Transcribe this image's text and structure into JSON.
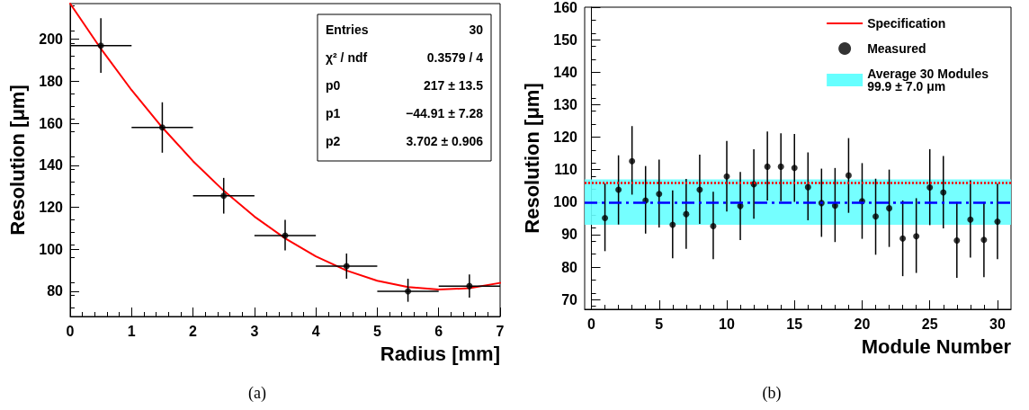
{
  "chart_data": [
    {
      "type": "scatter",
      "xlabel": "Radius [mm]",
      "ylabel": "Resolution [μm]",
      "xlim": [
        0,
        7
      ],
      "xticks": [
        0,
        1,
        2,
        3,
        4,
        5,
        6,
        7
      ],
      "ylim": [
        68,
        217
      ],
      "yticks": [
        80,
        100,
        120,
        140,
        160,
        180,
        200
      ],
      "grid": false,
      "legend": false,
      "annotations": [
        "Entries",
        "30",
        "χ² / ndf",
        "0.3579 / 4",
        "p0",
        "217 ± 13.5",
        "p1",
        "−44.91 ± 7.28",
        "p2",
        "3.702 ± 0.906",
        "(a)"
      ],
      "series": [
        {
          "marker": "circle",
          "color": "#000000",
          "x": [
            0.5,
            1.5,
            2.5,
            3.5,
            4.5,
            5.5,
            6.5
          ],
          "values": [
            197,
            158,
            125.5,
            106.5,
            92,
            80,
            82.5
          ],
          "errors": [
            [
              184,
              210
            ],
            [
              146,
              170
            ],
            [
              117,
              134
            ],
            [
              99.5,
              114
            ],
            [
              86,
              98
            ],
            [
              75,
              86
            ],
            [
              77,
              88
            ]
          ],
          "xerrors": [
            0.5,
            0.5,
            0.5,
            0.5,
            0.5,
            0.5,
            0.5
          ]
        },
        {
          "type": "line",
          "color": "#ff0000",
          "x": [
            0,
            0.5,
            1,
            1.5,
            2,
            2.5,
            3,
            3.5,
            4,
            4.5,
            5,
            5.5,
            6,
            6.5,
            7
          ],
          "values": [
            217,
            195.5,
            175.8,
            158,
            142,
            127.9,
            115.6,
            105.2,
            96.6,
            89.9,
            85,
            82,
            80.8,
            81.5,
            84
          ]
        }
      ]
    },
    {
      "type": "scatter",
      "xlabel": "Module Number",
      "ylabel": "Resolution [μm]",
      "xlim": [
        -0.5,
        31
      ],
      "xticks": [
        0,
        5,
        10,
        15,
        20,
        25,
        30
      ],
      "ylim": [
        67,
        160
      ],
      "yticks": [
        70,
        80,
        90,
        100,
        110,
        120,
        130,
        140,
        150,
        160
      ],
      "grid": false,
      "legend": "top right",
      "marker": "circle",
      "annotations": [
        "(b)"
      ],
      "series": [
        {
          "name": "Measured",
          "color": "#000000",
          "x": [
            1,
            2,
            3,
            4,
            5,
            6,
            7,
            8,
            9,
            10,
            11,
            12,
            13,
            14,
            15,
            16,
            17,
            18,
            19,
            20,
            21,
            22,
            23,
            24,
            25,
            26,
            27,
            28,
            29,
            30
          ],
          "values": [
            95.1,
            103.8,
            112.6,
            100.5,
            102.5,
            93,
            96.3,
            103.8,
            92.6,
            107.9,
            98.8,
            105.5,
            110.9,
            110.9,
            110.5,
            104.6,
            99.7,
            98.9,
            108.2,
            100.3,
            95.6,
            98.1,
            88.8,
            89.5,
            104.5,
            103,
            88.2,
            94.6,
            88.4,
            94
          ],
          "errors": [
            [
              84.9,
              105.7
            ],
            [
              93.1,
              114.4
            ],
            [
              102.3,
              123.4
            ],
            [
              90.3,
              111.1
            ],
            [
              92.2,
              113.1
            ],
            [
              82.7,
              103.6
            ],
            [
              85.6,
              107.1
            ],
            [
              93.3,
              114.6
            ],
            [
              82.4,
              103.2
            ],
            [
              97.1,
              118.8
            ],
            [
              88.3,
              109.3
            ],
            [
              94.9,
              116.3
            ],
            [
              100.5,
              121.7
            ],
            [
              100.3,
              121.2
            ],
            [
              100.1,
              121
            ],
            [
              94.4,
              115.3
            ],
            [
              89.3,
              110.3
            ],
            [
              87.7,
              110.5
            ],
            [
              96.7,
              119.7
            ],
            [
              88.7,
              112
            ],
            [
              83.8,
              107.2
            ],
            [
              86.2,
              110
            ],
            [
              77.2,
              100.5
            ],
            [
              78.2,
              101.2
            ],
            [
              92.9,
              116.3
            ],
            [
              91.9,
              114.2
            ],
            [
              76.7,
              100
            ],
            [
              82.9,
              106.7
            ],
            [
              76.9,
              100
            ],
            [
              82.4,
              105.7
            ]
          ]
        }
      ],
      "ref_lines": [
        {
          "axis": "y",
          "value": 106,
          "label": "Specification",
          "color": "#ff0000",
          "line_style": "dotted"
        },
        {
          "axis": "y",
          "value": 100,
          "color": "#0000ff",
          "line_style": "dashed"
        }
      ],
      "bands": [
        {
          "axis": "y",
          "from": 93,
          "to": 107,
          "label": "Average 30 Modules\n99.9 ± 7.0 μm",
          "color": "#66ffff"
        }
      ]
    }
  ]
}
